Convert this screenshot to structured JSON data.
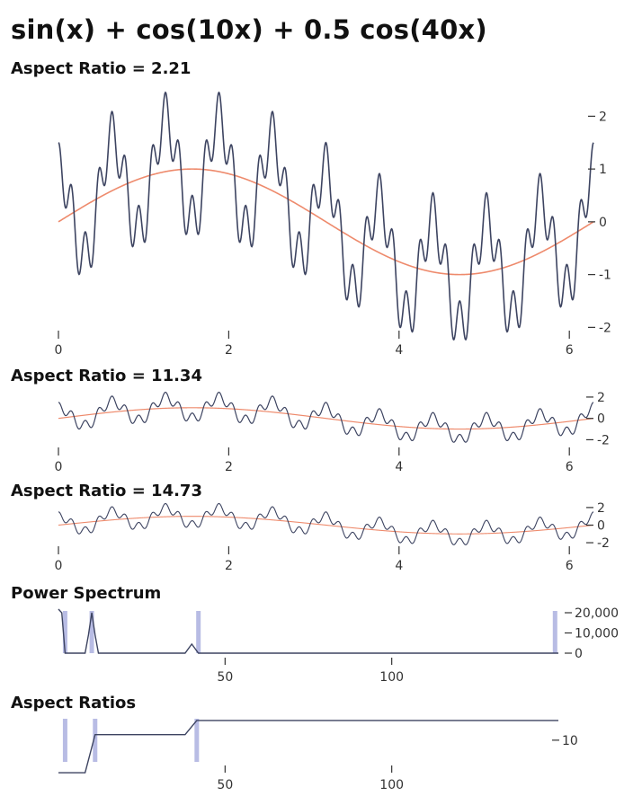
{
  "title": "sin(x) + cos(10x) + 0.5 cos(40x)",
  "colors": {
    "signal": "#3d4461",
    "smooth": "#ee8a6c",
    "highlight": "#b8bce4",
    "axis": "#333333"
  },
  "chart_data": [
    {
      "type": "line",
      "title": "Aspect Ratio = 2.21",
      "function": "sin(x) + cos(10x) + 0.5 cos(40x)",
      "overlay": "sin(x)",
      "xlim": [
        0,
        6.283
      ],
      "ylim": [
        -2.3,
        2.5
      ],
      "xticks": [
        0,
        2,
        4,
        6
      ],
      "yticks": [
        -2,
        -1,
        0,
        1,
        2
      ],
      "series": [
        {
          "values": []
        },
        {
          "values": []
        }
      ]
    },
    {
      "type": "line",
      "title": "Aspect Ratio = 11.34",
      "function": "sin(x) + cos(10x) + 0.5 cos(40x)",
      "overlay": "sin(x)",
      "xlim": [
        0,
        6.283
      ],
      "ylim": [
        -2.3,
        2.5
      ],
      "xticks": [
        0,
        2,
        4,
        6
      ],
      "yticks": [
        -2,
        0,
        2
      ]
    },
    {
      "type": "line",
      "title": "Aspect Ratio = 14.73",
      "function": "sin(x) + cos(10x) + 0.5 cos(40x)",
      "overlay": "sin(x)",
      "xlim": [
        0,
        6.283
      ],
      "ylim": [
        -2.3,
        2.5
      ],
      "xticks": [
        0,
        2,
        4,
        6
      ],
      "yticks": [
        -2,
        0,
        2
      ]
    },
    {
      "type": "line",
      "title": "Power Spectrum",
      "xlim": [
        0,
        150
      ],
      "ylim": [
        0,
        20000
      ],
      "xticks": [
        50,
        100
      ],
      "yticks": [
        0,
        10000,
        20000
      ],
      "ytick_labels": [
        "0",
        "10,000",
        "20,000"
      ],
      "highlights": [
        2,
        10,
        42,
        149
      ],
      "points": [
        [
          0,
          22000
        ],
        [
          1,
          20000
        ],
        [
          2,
          0
        ],
        [
          8,
          0
        ],
        [
          9,
          9000
        ],
        [
          10,
          20000
        ],
        [
          11,
          9000
        ],
        [
          12,
          0
        ],
        [
          38,
          0
        ],
        [
          40,
          4500
        ],
        [
          42,
          0
        ],
        [
          150,
          0
        ]
      ]
    },
    {
      "type": "line",
      "title": "Aspect Ratios",
      "xlim": [
        0,
        150
      ],
      "ylim": [
        2,
        16
      ],
      "xticks": [
        50,
        100
      ],
      "yticks": [
        10
      ],
      "ytick_labels": [
        "10"
      ],
      "highlights": [
        2,
        11,
        41.5
      ],
      "points": [
        [
          0,
          2.21
        ],
        [
          8,
          2.21
        ],
        [
          11,
          11.34
        ],
        [
          38,
          11.34
        ],
        [
          41.5,
          14.73
        ],
        [
          150,
          14.73
        ]
      ]
    }
  ]
}
